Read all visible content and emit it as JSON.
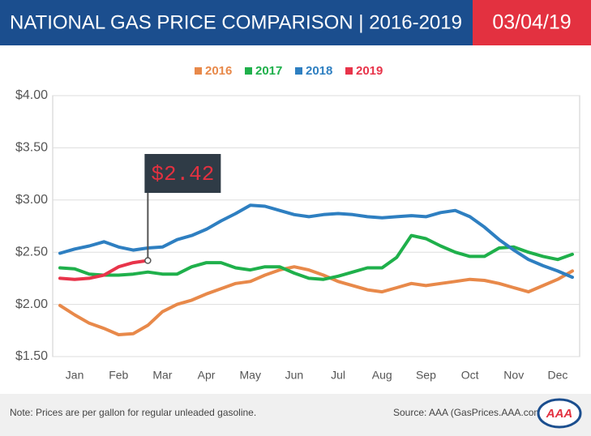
{
  "header": {
    "title": "NATIONAL GAS PRICE COMPARISON | 2016-2019",
    "date": "03/04/19"
  },
  "chart_data": {
    "type": "line",
    "categories": [
      null,
      "Jan",
      null,
      null,
      "Feb",
      null,
      null,
      "Mar",
      null,
      null,
      "Apr",
      null,
      null,
      "May",
      null,
      null,
      "Jun",
      null,
      null,
      "Jul",
      null,
      null,
      "Aug",
      null,
      null,
      "Sep",
      null,
      null,
      "Oct",
      null,
      null,
      "Nov",
      null,
      null,
      "Dec",
      null
    ],
    "series": [
      {
        "name": "2016",
        "color": "#e8894a",
        "values": [
          1.99,
          1.9,
          1.82,
          1.77,
          1.71,
          1.72,
          1.8,
          1.93,
          2.0,
          2.04,
          2.1,
          2.15,
          2.2,
          2.22,
          2.28,
          2.33,
          2.36,
          2.33,
          2.28,
          2.22,
          2.18,
          2.14,
          2.12,
          2.16,
          2.2,
          2.18,
          2.2,
          2.22,
          2.24,
          2.23,
          2.2,
          2.16,
          2.12,
          2.18,
          2.24,
          2.32
        ]
      },
      {
        "name": "2017",
        "color": "#1fb04b",
        "values": [
          2.35,
          2.34,
          2.29,
          2.28,
          2.28,
          2.29,
          2.31,
          2.29,
          2.29,
          2.36,
          2.4,
          2.4,
          2.35,
          2.33,
          2.36,
          2.36,
          2.3,
          2.25,
          2.24,
          2.27,
          2.31,
          2.35,
          2.35,
          2.45,
          2.66,
          2.63,
          2.56,
          2.5,
          2.46,
          2.46,
          2.54,
          2.55,
          2.5,
          2.46,
          2.43,
          2.48
        ]
      },
      {
        "name": "2018",
        "color": "#2e7fc1",
        "values": [
          2.49,
          2.53,
          2.56,
          2.6,
          2.55,
          2.52,
          2.54,
          2.55,
          2.62,
          2.66,
          2.72,
          2.8,
          2.87,
          2.95,
          2.94,
          2.9,
          2.86,
          2.84,
          2.86,
          2.87,
          2.86,
          2.84,
          2.83,
          2.84,
          2.85,
          2.84,
          2.88,
          2.9,
          2.84,
          2.74,
          2.62,
          2.52,
          2.43,
          2.37,
          2.32,
          2.26
        ]
      },
      {
        "name": "2019",
        "color": "#e8344a",
        "values": [
          2.25,
          2.24,
          2.25,
          2.28,
          2.36,
          2.4,
          2.42,
          null,
          null,
          null,
          null,
          null,
          null,
          null,
          null,
          null,
          null,
          null,
          null,
          null,
          null,
          null,
          null,
          null,
          null,
          null,
          null,
          null,
          null,
          null,
          null,
          null,
          null,
          null,
          null,
          null
        ]
      }
    ],
    "ylim": [
      1.5,
      4.0
    ],
    "yticks": [
      {
        "value": 1.5,
        "label": "$1.50"
      },
      {
        "value": 2.0,
        "label": "$2.00"
      },
      {
        "value": 2.5,
        "label": "$2.50"
      },
      {
        "value": 3.0,
        "label": "$3.00"
      },
      {
        "value": 3.5,
        "label": "$3.50"
      },
      {
        "value": 4.0,
        "label": "$4.00"
      }
    ],
    "grid": true,
    "annotation": "$2.42"
  },
  "footer": {
    "note": "Note: Prices are per gallon for regular unleaded gasoline.",
    "source": "Source: AAA (GasPrices.AAA.com)",
    "logo": "AAA"
  }
}
